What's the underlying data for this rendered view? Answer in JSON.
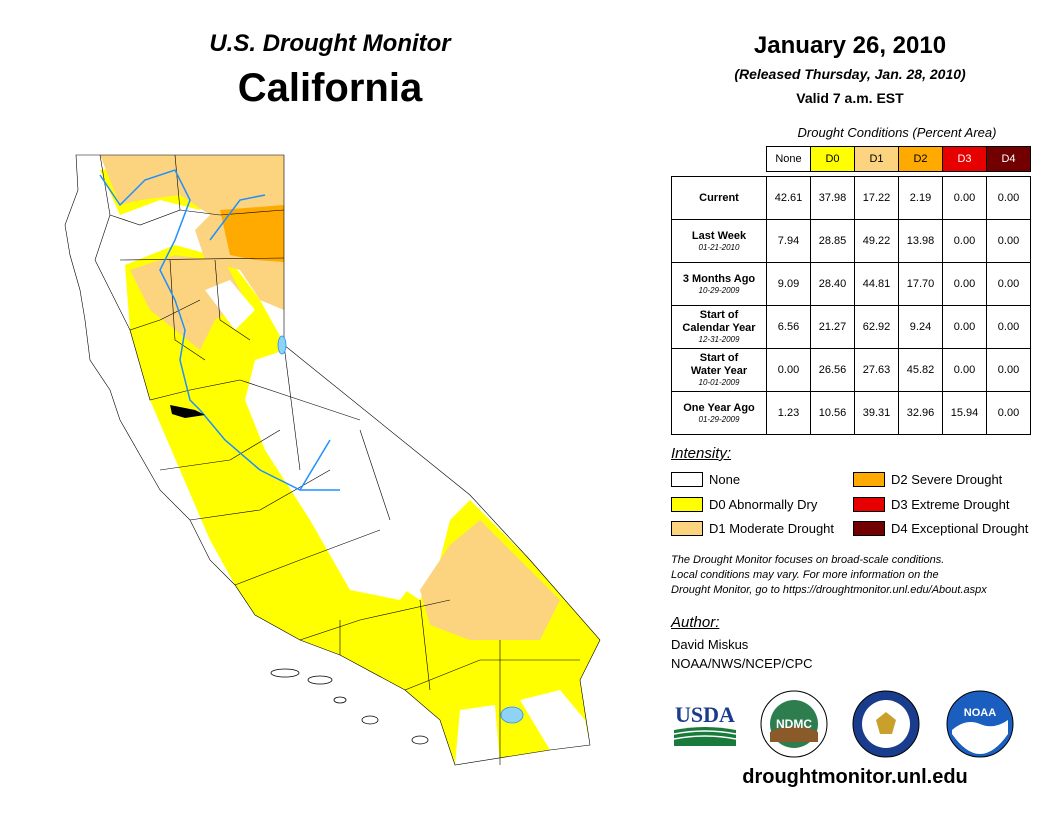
{
  "header": {
    "subtitle": "U.S. Drought Monitor",
    "state": "California",
    "date": "January 26, 2010",
    "released": "(Released Thursday, Jan. 28, 2010)",
    "valid": "Valid 7 a.m. EST"
  },
  "table": {
    "caption": "Drought Conditions (Percent Area)",
    "columns": [
      {
        "label": "None",
        "color": "#ffffff",
        "text_color": "#000000"
      },
      {
        "label": "D0",
        "color": "#ffff00",
        "text_color": "#000000"
      },
      {
        "label": "D1",
        "color": "#fcd37f",
        "text_color": "#000000"
      },
      {
        "label": "D2",
        "color": "#ffaa00",
        "text_color": "#000000"
      },
      {
        "label": "D3",
        "color": "#e60000",
        "text_color": "#ffffff"
      },
      {
        "label": "D4",
        "color": "#730000",
        "text_color": "#ffffff"
      }
    ],
    "rows": [
      {
        "label": "Current",
        "label2": "",
        "date": "",
        "values": [
          "42.61",
          "37.98",
          "17.22",
          "2.19",
          "0.00",
          "0.00"
        ]
      },
      {
        "label": "Last Week",
        "label2": "",
        "date": "01-21-2010",
        "values": [
          "7.94",
          "28.85",
          "49.22",
          "13.98",
          "0.00",
          "0.00"
        ]
      },
      {
        "label": "3 Months Ago",
        "label2": "",
        "date": "10-29-2009",
        "values": [
          "9.09",
          "28.40",
          "44.81",
          "17.70",
          "0.00",
          "0.00"
        ]
      },
      {
        "label": "Start of",
        "label2": "Calendar Year",
        "date": "12-31-2009",
        "values": [
          "6.56",
          "21.27",
          "62.92",
          "9.24",
          "0.00",
          "0.00"
        ]
      },
      {
        "label": "Start of",
        "label2": "Water Year",
        "date": "10-01-2009",
        "values": [
          "0.00",
          "26.56",
          "27.63",
          "45.82",
          "0.00",
          "0.00"
        ]
      },
      {
        "label": "One Year Ago",
        "label2": "",
        "date": "01-29-2009",
        "values": [
          "1.23",
          "10.56",
          "39.31",
          "32.96",
          "15.94",
          "0.00"
        ]
      }
    ]
  },
  "legend": {
    "title": "Intensity:",
    "items": [
      {
        "label": "None",
        "color": "#ffffff"
      },
      {
        "label": "D0 Abnormally Dry",
        "color": "#ffff00"
      },
      {
        "label": "D1 Moderate Drought",
        "color": "#fcd37f"
      },
      {
        "label": "D2 Severe Drought",
        "color": "#ffaa00"
      },
      {
        "label": "D3 Extreme Drought",
        "color": "#e60000"
      },
      {
        "label": "D4 Exceptional Drought",
        "color": "#730000"
      }
    ]
  },
  "note": [
    "The Drought Monitor focuses on broad-scale conditions.",
    "Local conditions may vary. For more information on the",
    "Drought Monitor, go to https://droughtmonitor.unl.edu/About.aspx"
  ],
  "author": {
    "title": "Author:",
    "name": "David Miskus",
    "org": "NOAA/NWS/NCEP/CPC"
  },
  "logos": {
    "usda": "USDA",
    "ndmc": "NDMC",
    "noaa": "NOAA"
  },
  "url": "droughtmonitor.unl.edu"
}
